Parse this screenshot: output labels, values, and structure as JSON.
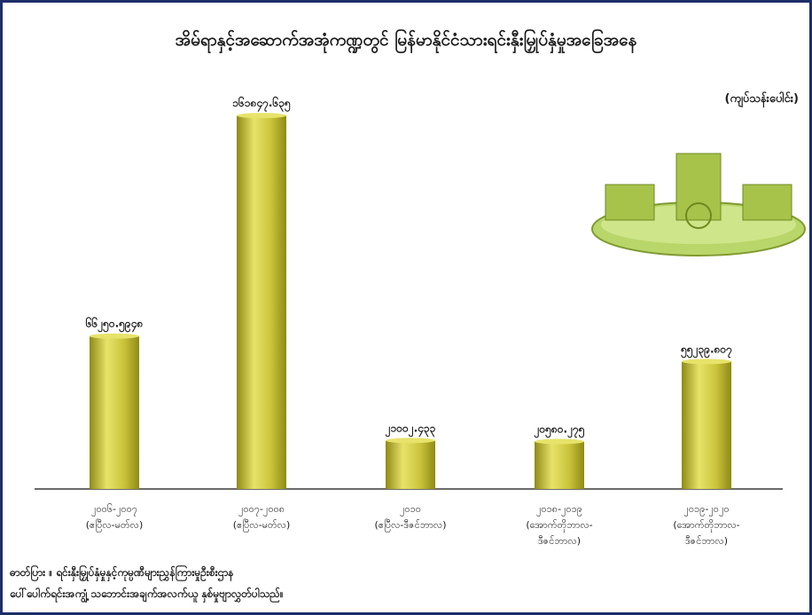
{
  "chart_data": {
    "type": "bar",
    "title": "အိမ်ရာနှင့်အဆောက်အအုံကဏ္ဍတွင် မြန်မာနိုင်ငံသားရင်းနှီးမြှုပ်နှံမှုအခြေအနေ",
    "unit": "(ကျပ်သန်းပေါင်း)",
    "categories": [
      [
        "၂၀၀၆-၂၀၀၇",
        "(ဧပြီလ-မတ်လ)"
      ],
      [
        "၂၀၀၇-၂၀၀၈",
        "(ဧပြီလ-မတ်လ)"
      ],
      [
        "၂၀၁၀",
        "(ဧပြီလ-ဒီဇင်ဘာလ)"
      ],
      [
        "၂၀၁၈-၂၀၁၉",
        "(အောက်တိုဘာလ-",
        "ဒီဇင်ဘာလ)"
      ],
      [
        "၂၀၁၉-၂၀၂၀",
        "(အောက်တိုဘာလ-",
        "ဒီဇင်ဘာလ)"
      ]
    ],
    "values": [
      66250.5948,
      161847.635,
      21002.433,
      20580.275,
      55239.807
    ],
    "value_labels": [
      "၆၆၂၅၀.၅၉၄၈",
      "၁၆၁၈၄၇.၆၃၅",
      "၂၁၀၀၂.၄၃၃",
      "၂၀၅၈၀.၂၇၅",
      "၅၅၂၃၉.၈၀၇"
    ],
    "ylim": [
      0,
      180000
    ],
    "grid": false,
    "legend": "none"
  },
  "source": {
    "line1": "ဓာတ်ပြား ။ ရင်းနှီးမြှုပ်နှံမှုနှင့်ကုမ္ပဏီများညွှန်ကြားမှုဦးစီးဌာန",
    "line2": "ပေါ်ပေါက်ရင်းအကျွံ့ သဘောင်းအချက်အလက်ယူ နှစ်မှုဗျာလွှတ်ပါသည်။"
  },
  "colors": {
    "bar": "#c9c33a",
    "bar_dark": "#8f8a16",
    "bar_light": "#e7e36a",
    "baseline": "#6b6b6b",
    "frame": "#1e2e6a",
    "illustration": "#b9d66a"
  }
}
